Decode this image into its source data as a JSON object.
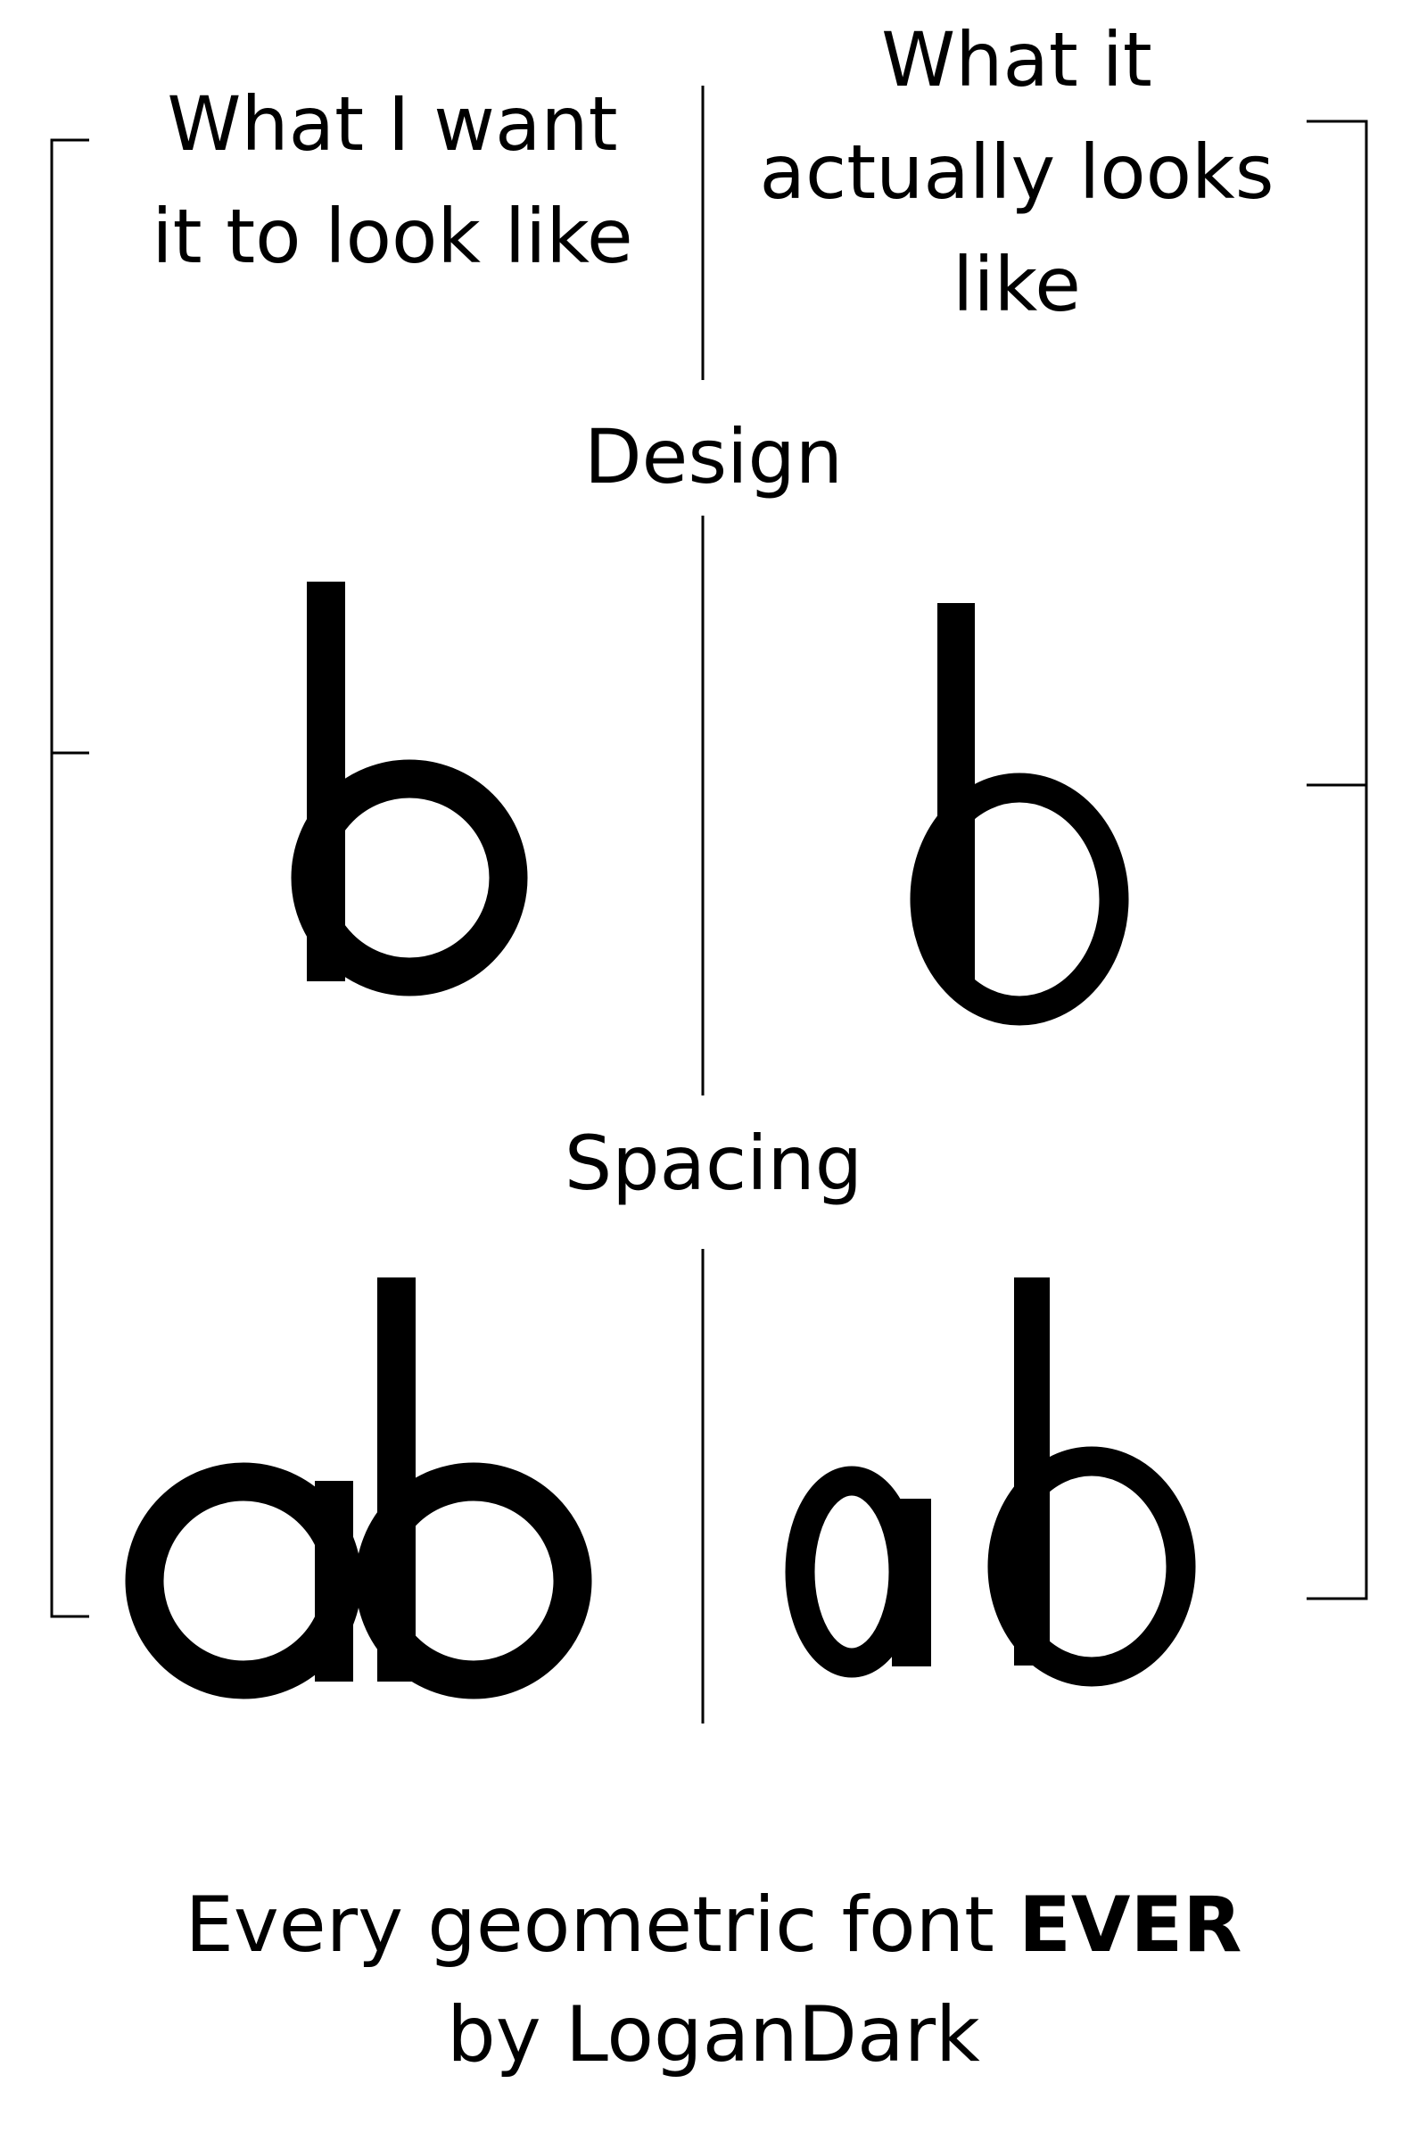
{
  "headings": {
    "left": [
      "What I want",
      "it to look like"
    ],
    "right": [
      "What it",
      "actually looks",
      "like"
    ]
  },
  "sections": {
    "design": "Design",
    "spacing": "Spacing"
  },
  "caption": {
    "prefix": "Every geometric font",
    "emphasis": "EVER",
    "credit": "by LoganDark"
  },
  "colors": {
    "background": "#ffffff",
    "ink": "#000000"
  }
}
